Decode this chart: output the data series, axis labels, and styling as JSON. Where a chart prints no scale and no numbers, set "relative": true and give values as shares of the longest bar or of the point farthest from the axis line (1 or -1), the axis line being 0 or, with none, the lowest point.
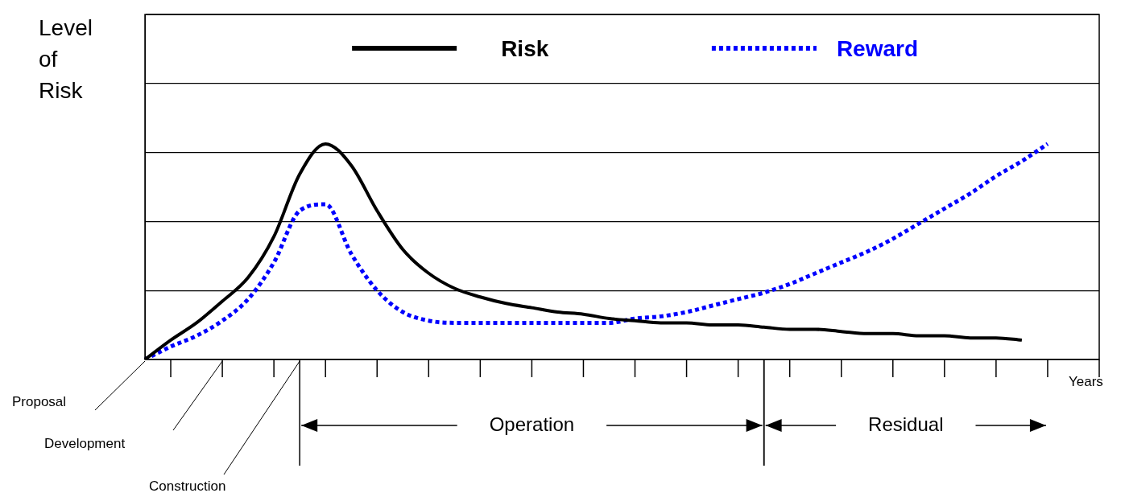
{
  "chart_data": {
    "type": "line",
    "relative": true,
    "ylabel": "Level of Risk",
    "xlabel": "Years",
    "grid": "y",
    "legend": "top",
    "categories": [
      null,
      null,
      null,
      null,
      null,
      null,
      null,
      null,
      null,
      null,
      null,
      null,
      null,
      null,
      null,
      null,
      null,
      null,
      null,
      null,
      null,
      null,
      null,
      null,
      null,
      null,
      null,
      null,
      null,
      null,
      null,
      null,
      null,
      null,
      null,
      null,
      null,
      null
    ],
    "annotations": [
      "Proposal",
      "Development",
      "Construction",
      "Operation",
      "Residual"
    ],
    "series": [
      {
        "name": "Risk",
        "color": "#000000",
        "line_style": "solid",
        "values": [
          0,
          0.09,
          0.17,
          0.27,
          0.38,
          0.57,
          0.86,
          1.0,
          0.9,
          0.69,
          0.51,
          0.4,
          0.33,
          0.29,
          0.26,
          0.24,
          0.22,
          0.21,
          0.19,
          0.18,
          0.17,
          0.17,
          0.16,
          0.16,
          0.15,
          0.14,
          0.14,
          0.13,
          0.12,
          0.12,
          0.11,
          0.11,
          0.1,
          0.1,
          0.09,
          null,
          null,
          null
        ]
      },
      {
        "name": "Reward",
        "color": "#0000ff",
        "line_style": "dotted",
        "values": [
          0,
          0.06,
          0.11,
          0.18,
          0.28,
          0.45,
          0.69,
          0.72,
          0.49,
          0.32,
          0.22,
          0.18,
          0.17,
          0.17,
          0.17,
          0.17,
          0.17,
          0.17,
          0.17,
          0.19,
          0.2,
          0.22,
          0.25,
          0.28,
          0.31,
          0.35,
          0.4,
          0.45,
          0.5,
          0.56,
          0.63,
          0.7,
          0.77,
          0.85,
          0.92,
          1.0,
          null,
          null
        ]
      }
    ]
  }
}
